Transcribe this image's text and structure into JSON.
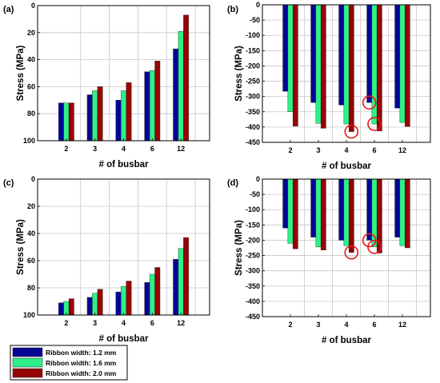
{
  "colors": {
    "series": [
      "#050596",
      "#2ef088",
      "#960404"
    ],
    "grid": "#c8c8c8",
    "highlight": "#e8131b"
  },
  "legend": {
    "entries": [
      "Ribbon width: 1.2 mm",
      "Ribbon width: 1.6 mm",
      "Ribbon width: 2.0 mm"
    ]
  },
  "chart_data": [
    {
      "type": "bar",
      "panel_label": "(a)",
      "categories": [
        "2",
        "3",
        "4",
        "6",
        "12"
      ],
      "xlabel": "# of busbar",
      "ylabel": "Stress (MPa)",
      "ylim": [
        0,
        100
      ],
      "yticks": [
        "0",
        "20",
        "40",
        "60",
        "80",
        "100"
      ],
      "grid": true,
      "series": [
        {
          "name": "Ribbon width: 1.2 mm",
          "values": [
            28,
            34,
            30,
            51,
            68
          ]
        },
        {
          "name": "Ribbon width: 1.6 mm",
          "values": [
            28,
            37,
            37,
            52,
            81
          ]
        },
        {
          "name": "Ribbon width: 2.0 mm",
          "values": [
            28,
            40,
            43,
            59,
            93
          ]
        }
      ]
    },
    {
      "type": "bar",
      "panel_label": "(b)",
      "categories": [
        "2",
        "3",
        "4",
        "6",
        "12"
      ],
      "xlabel": "# of busbar",
      "ylabel": "Stress (MPa)",
      "ylim": [
        -450,
        0
      ],
      "yticks": [
        "0",
        "-50",
        "-100",
        "-150",
        "-200",
        "-250",
        "-300",
        "-350",
        "-400",
        "-450"
      ],
      "grid": true,
      "series": [
        {
          "name": "Ribbon width: 1.2 mm",
          "values": [
            -283,
            -320,
            -328,
            -320,
            -338
          ]
        },
        {
          "name": "Ribbon width: 1.6 mm",
          "values": [
            -350,
            -388,
            -390,
            -390,
            -385
          ]
        },
        {
          "name": "Ribbon width: 2.0 mm",
          "values": [
            -397,
            -404,
            -415,
            -413,
            -398
          ]
        }
      ],
      "annotations": [
        {
          "category": "4",
          "series": 2
        },
        {
          "category": "6",
          "series": 0
        },
        {
          "category": "6",
          "series": 1
        }
      ]
    },
    {
      "type": "bar",
      "panel_label": "(c)",
      "categories": [
        "2",
        "3",
        "4",
        "6",
        "12"
      ],
      "xlabel": "# of busbar",
      "ylabel": "Stress (MPa)",
      "ylim": [
        0,
        100
      ],
      "yticks": [
        "0",
        "20",
        "40",
        "60",
        "80",
        "100"
      ],
      "grid": true,
      "series": [
        {
          "name": "Ribbon width: 1.2 mm",
          "values": [
            9,
            13,
            17,
            24,
            41
          ]
        },
        {
          "name": "Ribbon width: 1.6 mm",
          "values": [
            10,
            16,
            21,
            30,
            49
          ]
        },
        {
          "name": "Ribbon width: 2.0 mm",
          "values": [
            12,
            19,
            25,
            35,
            57
          ]
        }
      ]
    },
    {
      "type": "bar",
      "panel_label": "(d)",
      "categories": [
        "2",
        "3",
        "4",
        "6",
        "12"
      ],
      "xlabel": "# of busbar",
      "ylabel": "Stress (MPa)",
      "ylim": [
        -450,
        0
      ],
      "yticks": [
        "0",
        "-50",
        "-100",
        "-150",
        "-200",
        "-250",
        "-300",
        "-350",
        "-400",
        "-450"
      ],
      "grid": true,
      "series": [
        {
          "name": "Ribbon width: 1.2 mm",
          "values": [
            -160,
            -190,
            -200,
            -200,
            -190
          ]
        },
        {
          "name": "Ribbon width: 1.6 mm",
          "values": [
            -210,
            -222,
            -218,
            -222,
            -218
          ]
        },
        {
          "name": "Ribbon width: 2.0 mm",
          "values": [
            -228,
            -232,
            -240,
            -242,
            -225
          ]
        }
      ],
      "annotations": [
        {
          "category": "4",
          "series": 2
        },
        {
          "category": "6",
          "series": 0
        },
        {
          "category": "6",
          "series": 1
        }
      ]
    }
  ]
}
